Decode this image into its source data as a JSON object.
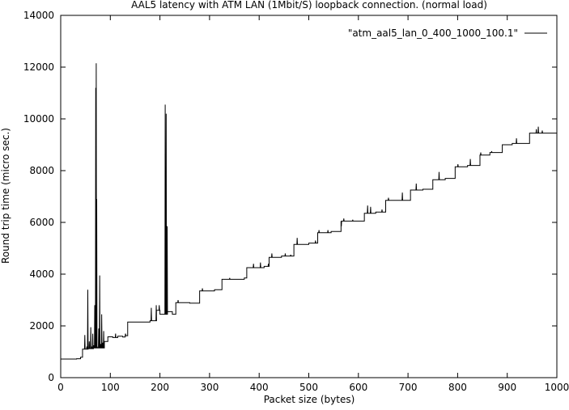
{
  "chart_data": {
    "type": "line",
    "title": "AAL5 latency with ATM LAN (1Mbit/S) loopback connection. (normal load)",
    "xlabel": "Packet size (bytes)",
    "ylabel": "Round trip time (micro sec.)",
    "xlim": [
      0,
      1000
    ],
    "ylim": [
      0,
      14000
    ],
    "xticks": [
      0,
      100,
      200,
      300,
      400,
      500,
      600,
      700,
      800,
      900,
      1000
    ],
    "yticks": [
      0,
      2000,
      4000,
      6000,
      8000,
      10000,
      12000,
      14000
    ],
    "grid": false,
    "legend_position": "top-right",
    "series": [
      {
        "name": "\"atm_aal5_lan_0_400_1000_100.1\"",
        "color": "#000000",
        "steps": [
          [
            0,
            720
          ],
          [
            12,
            720
          ],
          [
            32,
            730
          ],
          [
            40,
            790
          ],
          [
            44,
            1100
          ],
          [
            55,
            1120
          ],
          [
            66,
            1150
          ],
          [
            88,
            1400
          ],
          [
            95,
            1580
          ],
          [
            105,
            1550
          ],
          [
            115,
            1600
          ],
          [
            125,
            1570
          ],
          [
            130,
            1620
          ],
          [
            135,
            2150
          ],
          [
            180,
            2200
          ],
          [
            193,
            2600
          ],
          [
            200,
            2450
          ],
          [
            215,
            2550
          ],
          [
            225,
            2450
          ],
          [
            232,
            2900
          ],
          [
            260,
            2880
          ],
          [
            280,
            3350
          ],
          [
            290,
            3350
          ],
          [
            305,
            3350
          ],
          [
            310,
            3400
          ],
          [
            325,
            3800
          ],
          [
            370,
            3850
          ],
          [
            375,
            4250
          ],
          [
            410,
            4300
          ],
          [
            420,
            4650
          ],
          [
            445,
            4700
          ],
          [
            470,
            5150
          ],
          [
            500,
            5200
          ],
          [
            518,
            5600
          ],
          [
            545,
            5650
          ],
          [
            565,
            6050
          ],
          [
            605,
            6050
          ],
          [
            612,
            6350
          ],
          [
            635,
            6400
          ],
          [
            655,
            6850
          ],
          [
            680,
            6850
          ],
          [
            700,
            6850
          ],
          [
            705,
            7250
          ],
          [
            730,
            7280
          ],
          [
            750,
            7650
          ],
          [
            775,
            7700
          ],
          [
            795,
            8150
          ],
          [
            820,
            8200
          ],
          [
            845,
            8600
          ],
          [
            860,
            8600
          ],
          [
            865,
            8700
          ],
          [
            890,
            9000
          ],
          [
            910,
            9050
          ],
          [
            935,
            9050
          ],
          [
            945,
            9450
          ],
          [
            1000,
            9450
          ]
        ],
        "spikes": [
          [
            48,
            1650
          ],
          [
            52,
            1200
          ],
          [
            54,
            3400
          ],
          [
            57,
            1400
          ],
          [
            60,
            1950
          ],
          [
            62,
            1200
          ],
          [
            64,
            1700
          ],
          [
            66,
            1250
          ],
          [
            68,
            2800
          ],
          [
            70,
            11200
          ],
          [
            71,
            12150
          ],
          [
            72,
            6900
          ],
          [
            73,
            1200
          ],
          [
            76,
            1900
          ],
          [
            78,
            3950
          ],
          [
            80,
            1300
          ],
          [
            82,
            2450
          ],
          [
            84,
            1350
          ],
          [
            86,
            1800
          ],
          [
            110,
            1700
          ],
          [
            130,
            1700
          ],
          [
            182,
            2700
          ],
          [
            192,
            2800
          ],
          [
            198,
            2800
          ],
          [
            210,
            10550
          ],
          [
            212,
            10200
          ],
          [
            214,
            5850
          ],
          [
            236,
            3000
          ],
          [
            285,
            3450
          ],
          [
            340,
            3850
          ],
          [
            388,
            4400
          ],
          [
            402,
            4450
          ],
          [
            418,
            4400
          ],
          [
            425,
            4800
          ],
          [
            452,
            4800
          ],
          [
            463,
            4750
          ],
          [
            476,
            5400
          ],
          [
            513,
            5300
          ],
          [
            520,
            5700
          ],
          [
            538,
            5700
          ],
          [
            565,
            5850
          ],
          [
            570,
            6150
          ],
          [
            588,
            6100
          ],
          [
            618,
            6650
          ],
          [
            624,
            6600
          ],
          [
            647,
            6500
          ],
          [
            660,
            6950
          ],
          [
            688,
            7150
          ],
          [
            716,
            7500
          ],
          [
            762,
            7950
          ],
          [
            800,
            8250
          ],
          [
            825,
            8450
          ],
          [
            846,
            8700
          ],
          [
            868,
            8750
          ],
          [
            895,
            9000
          ],
          [
            918,
            9250
          ],
          [
            958,
            9600
          ],
          [
            962,
            9700
          ],
          [
            970,
            9550
          ]
        ]
      }
    ]
  }
}
